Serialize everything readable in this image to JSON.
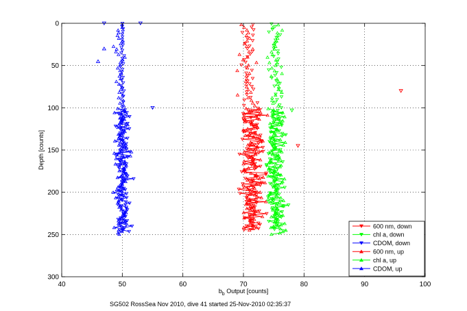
{
  "chart_data": {
    "type": "scatter",
    "xlabel_base": "b",
    "xlabel_sub": "b",
    "xlabel_rest": " Output [counts]",
    "ylabel": "Depth [counts]",
    "caption": "SG502 RossSea Nov 2010, dive 41 started 25-Nov-2010 02:35:37",
    "xlim": [
      40,
      100
    ],
    "ylim": [
      0,
      300
    ],
    "y_reversed": true,
    "grid": true,
    "legend_position": "bottom-right",
    "x_ticks": [
      "40",
      "50",
      "60",
      "70",
      "80",
      "90",
      "100"
    ],
    "y_ticks": [
      "0",
      "50",
      "100",
      "150",
      "200",
      "250",
      "300"
    ],
    "series": [
      {
        "name": "600 nm, down",
        "color": "#ff0000",
        "marker": "triangle-down",
        "profile": {
          "center_shallow": 70.8,
          "spread_shallow": 1.5,
          "center_deep": 71.5,
          "spread_deep": 2.0,
          "depth_top": 0,
          "depth_bottom": 245
        },
        "outliers": [
          {
            "x": 96,
            "y": 80
          },
          {
            "x": 79,
            "y": 145
          }
        ]
      },
      {
        "name": "chl a, down",
        "color": "#00ff00",
        "marker": "triangle-down",
        "profile": {
          "center_shallow": 75.3,
          "spread_shallow": 1.2,
          "center_deep": 75.3,
          "spread_deep": 1.5,
          "depth_top": 0,
          "depth_bottom": 245
        },
        "outliers": [
          {
            "x": 78,
            "y": 103
          }
        ]
      },
      {
        "name": "CDOM, down",
        "color": "#0000ff",
        "marker": "triangle-down",
        "profile": {
          "center_shallow": 50.0,
          "spread_shallow": 0.3,
          "center_deep": 50.2,
          "spread_deep": 1.2,
          "depth_top": 0,
          "depth_bottom": 248
        },
        "outliers": [
          {
            "x": 47,
            "y": 0
          },
          {
            "x": 53,
            "y": 0
          },
          {
            "x": 55,
            "y": 100
          }
        ]
      },
      {
        "name": "600 nm, up",
        "color": "#ff0000",
        "marker": "triangle-up",
        "profile": {
          "center_shallow": 70.8,
          "spread_shallow": 1.5,
          "center_deep": 71.5,
          "spread_deep": 2.0,
          "depth_top": 0,
          "depth_bottom": 245
        },
        "outliers": []
      },
      {
        "name": "chl a, up",
        "color": "#00ff00",
        "marker": "triangle-up",
        "profile": {
          "center_shallow": 75.3,
          "spread_shallow": 1.2,
          "center_deep": 75.3,
          "spread_deep": 1.5,
          "depth_top": 0,
          "depth_bottom": 250
        },
        "outliers": []
      },
      {
        "name": "CDOM, up",
        "color": "#0000ff",
        "marker": "triangle-up",
        "profile": {
          "center_shallow": 49.5,
          "spread_shallow": 1.0,
          "center_deep": 49.8,
          "spread_deep": 1.3,
          "depth_top": 0,
          "depth_bottom": 250
        },
        "outliers": [
          {
            "x": 46,
            "y": 45
          },
          {
            "x": 47,
            "y": 30
          }
        ]
      }
    ]
  }
}
